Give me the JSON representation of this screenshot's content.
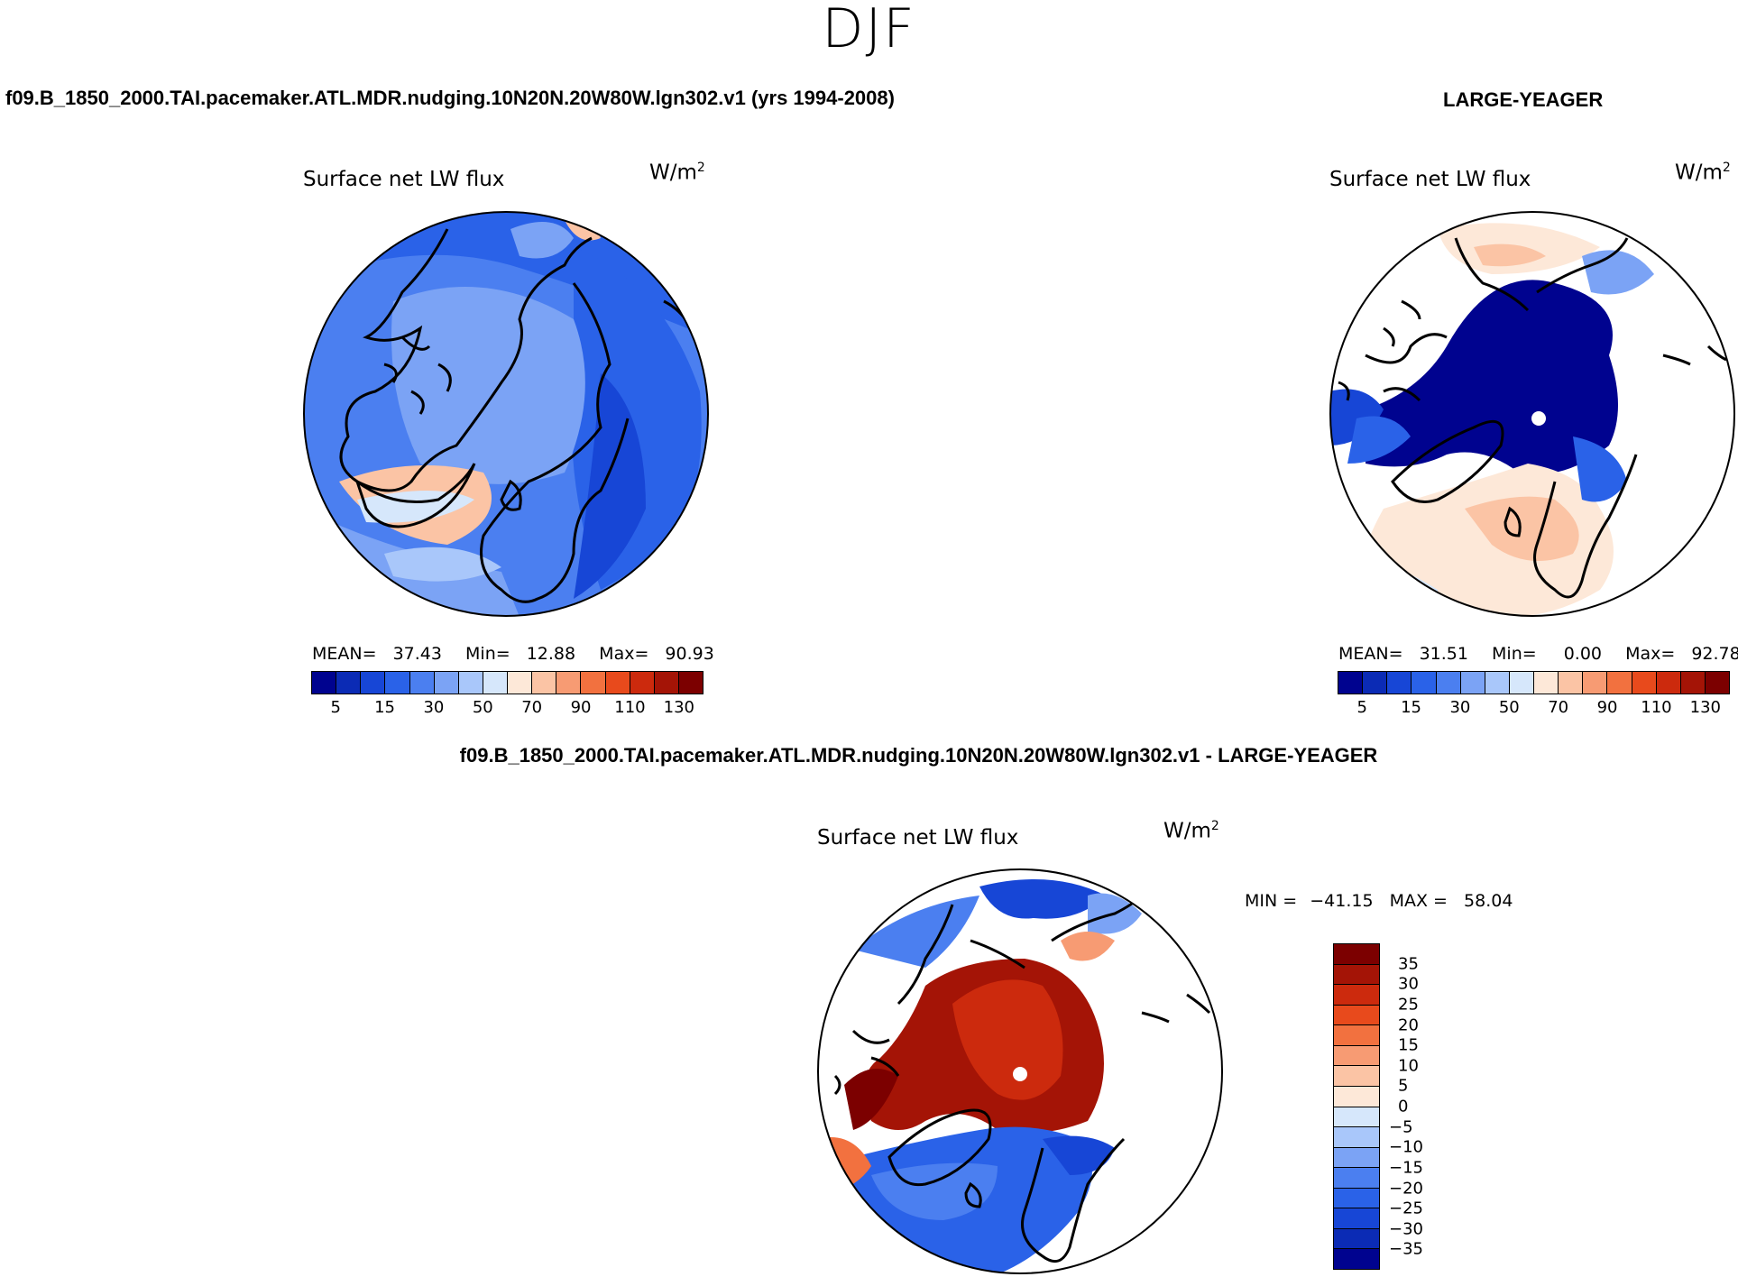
{
  "figure": {
    "season": "DJF",
    "case_title": "f09.B_1850_2000.TAI.pacemaker.ATL.MDR.nudging.10N20N.20W80W.lgn302.v1 (yrs 1994-2008)",
    "obs_title": "LARGE-YEAGER",
    "diff_title": "f09.B_1850_2000.TAI.pacemaker.ATL.MDR.nudging.10N20N.20W80W.lgn302.v1 - LARGE-YEAGER",
    "variable": "Surface net LW flux",
    "units_base": "W/m",
    "units_exp": "2"
  },
  "colors": {
    "abs_levels": [
      "#00038f",
      "#0b2bb5",
      "#1746d6",
      "#2a62e8",
      "#4b7ff0",
      "#7ba3f5",
      "#a9c7fa",
      "#d6e7fb",
      "#fde8d8",
      "#fbc4a5",
      "#f79b73",
      "#f2713f",
      "#e84a1c",
      "#cc2a0d",
      "#a41406",
      "#7c0000"
    ],
    "diff_levels": [
      "#00038f",
      "#0b2bb5",
      "#1746d6",
      "#2a62e8",
      "#4b7ff0",
      "#7ba3f5",
      "#a9c7fa",
      "#d6e7fb",
      "#fde8d8",
      "#fbc4a5",
      "#f79b73",
      "#f2713f",
      "#e84a1c",
      "#cc2a0d",
      "#a41406",
      "#7c0000"
    ]
  },
  "panels": {
    "model": {
      "mean_label": "MEAN=",
      "mean": "37.43",
      "min_label": "Min=",
      "min": "12.88",
      "max_label": "Max=",
      "max": "90.93",
      "ticks": [
        "5",
        "15",
        "30",
        "50",
        "70",
        "90",
        "110",
        "130"
      ]
    },
    "obs": {
      "mean_label": "MEAN=",
      "mean": "31.51",
      "min_label": "Min=",
      "min": "0.00",
      "max_label": "Max=",
      "max": "92.78",
      "ticks": [
        "5",
        "15",
        "30",
        "50",
        "70",
        "90",
        "110",
        "130"
      ]
    },
    "diff": {
      "min_label": "MIN =",
      "min": "−41.15",
      "max_label": "MAX =",
      "max": "58.04",
      "ticks": [
        "35",
        "30",
        "25",
        "20",
        "15",
        "10",
        "5",
        "0",
        "−5",
        "−10",
        "−15",
        "−20",
        "−25",
        "−30",
        "−35"
      ]
    }
  }
}
